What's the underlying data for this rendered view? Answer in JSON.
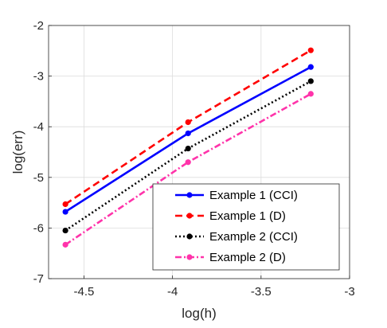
{
  "chart_data": {
    "type": "line",
    "title": "",
    "xlabel": "log(h)",
    "ylabel": "log(err)",
    "xlim": [
      -4.7,
      -3.0
    ],
    "ylim": [
      -7,
      -2
    ],
    "xticks": [
      -4.5,
      -4,
      -3.5,
      -3
    ],
    "xtick_labels": [
      "-4.5",
      "-4",
      "-3.5",
      "-3"
    ],
    "yticks": [
      -7,
      -6,
      -5,
      -4,
      -3,
      -2
    ],
    "ytick_labels": [
      "-7",
      "-6",
      "-5",
      "-4",
      "-3",
      "-2"
    ],
    "grid": true,
    "legend_position": "bottom-right",
    "x": [
      -4.605,
      -3.912,
      -3.219
    ],
    "series": [
      {
        "name": "Example 1 (CCI)",
        "values": [
          -5.68,
          -4.13,
          -2.82
        ],
        "color": "#0000FF",
        "dash": "solid",
        "marker": "dot"
      },
      {
        "name": "Example 1 (D)",
        "values": [
          -5.53,
          -3.91,
          -2.49
        ],
        "color": "#FF0000",
        "dash": "dashed",
        "marker": "dot"
      },
      {
        "name": "Example 2 (CCI)",
        "values": [
          -6.05,
          -4.43,
          -3.1
        ],
        "color": "#000000",
        "dash": "dotted",
        "marker": "dot"
      },
      {
        "name": "Example 2 (D)",
        "values": [
          -6.33,
          -4.7,
          -3.35
        ],
        "color": "#FF33AA",
        "dash": "dashdot",
        "marker": "dot"
      }
    ]
  }
}
